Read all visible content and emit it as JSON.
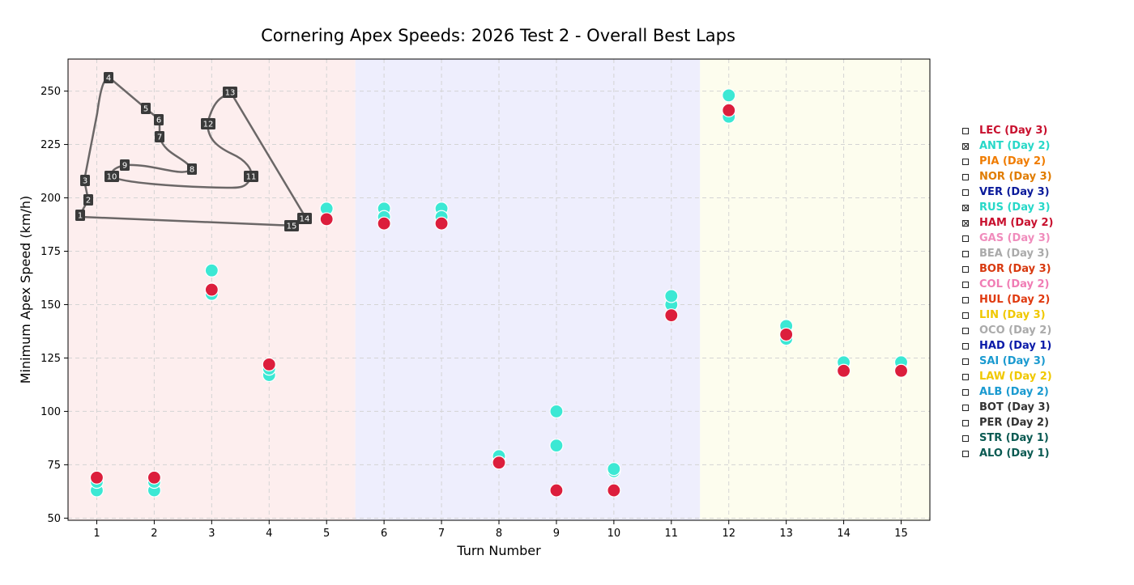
{
  "chart_data": {
    "type": "scatter",
    "title": "Cornering Apex Speeds: 2026 Test 2 - Overall Best Laps",
    "xlabel": "Turn Number",
    "ylabel": "Minimum Apex Speed (km/h)",
    "xlim": [
      0.5,
      15.5
    ],
    "ylim": [
      49,
      265
    ],
    "xticks": [
      1,
      2,
      3,
      4,
      5,
      6,
      7,
      8,
      9,
      10,
      11,
      12,
      13,
      14,
      15
    ],
    "yticks": [
      50,
      75,
      100,
      125,
      150,
      175,
      200,
      225,
      250
    ],
    "grid": true,
    "sectors": [
      {
        "from": 0.5,
        "to": 5.5,
        "color": "#fdeeee"
      },
      {
        "from": 5.5,
        "to": 11.5,
        "color": "#eeeefd"
      },
      {
        "from": 11.5,
        "to": 15.5,
        "color": "#fdfdee"
      }
    ],
    "series": [
      {
        "name": "ANT (Day 2)",
        "color": "#3ce8d4",
        "x": [
          1,
          2,
          3,
          4,
          5,
          6,
          7,
          8,
          9,
          10,
          11,
          12,
          13,
          14,
          15
        ],
        "values": [
          63,
          63,
          155,
          117,
          195,
          195,
          195,
          78,
          84,
          72,
          150,
          238,
          134,
          122,
          122
        ]
      },
      {
        "name": "RUS (Day 3)",
        "color": "#3ce8d4",
        "x": [
          1,
          2,
          3,
          4,
          5,
          6,
          7,
          8,
          9,
          10,
          11,
          12,
          13,
          14,
          15
        ],
        "values": [
          67,
          67,
          166,
          120,
          195,
          191,
          191,
          79,
          100,
          73,
          154,
          248,
          140,
          123,
          123
        ]
      },
      {
        "name": "HAM (Day 2)",
        "color": "#dc1e3c",
        "x": [
          1,
          2,
          3,
          4,
          5,
          6,
          7,
          8,
          9,
          10,
          11,
          12,
          13,
          14,
          15
        ],
        "values": [
          69,
          69,
          157,
          122,
          190,
          188,
          188,
          76,
          63,
          63,
          145,
          241,
          136,
          119,
          119
        ]
      }
    ],
    "track_map": {
      "corners": [
        "1",
        "2",
        "3",
        "4",
        "5",
        "6",
        "7",
        "8",
        "9",
        "10",
        "11",
        "12",
        "13",
        "14",
        "15"
      ]
    }
  },
  "legend": [
    {
      "label": "LEC (Day 3)",
      "color": "#c8102e",
      "checked": false
    },
    {
      "label": "ANT (Day 2)",
      "color": "#27d8c8",
      "checked": true
    },
    {
      "label": "PIA (Day 2)",
      "color": "#f07c00",
      "checked": false
    },
    {
      "label": "NOR (Day 3)",
      "color": "#e07c00",
      "checked": false
    },
    {
      "label": "VER (Day 3)",
      "color": "#0a1a9a",
      "checked": false
    },
    {
      "label": "RUS (Day 3)",
      "color": "#27d8c8",
      "checked": true
    },
    {
      "label": "HAM (Day 2)",
      "color": "#c8102e",
      "checked": true
    },
    {
      "label": "GAS (Day 3)",
      "color": "#f08cbc",
      "checked": false
    },
    {
      "label": "BEA (Day 3)",
      "color": "#aaaaaa",
      "checked": false
    },
    {
      "label": "BOR (Day 3)",
      "color": "#d83a10",
      "checked": false
    },
    {
      "label": "COL (Day 2)",
      "color": "#f07cb4",
      "checked": false
    },
    {
      "label": "HUL (Day 2)",
      "color": "#e03a10",
      "checked": false
    },
    {
      "label": "LIN (Day 3)",
      "color": "#f0c800",
      "checked": false
    },
    {
      "label": "OCO (Day 2)",
      "color": "#aaaaaa",
      "checked": false
    },
    {
      "label": "HAD (Day 1)",
      "color": "#0a1aa8",
      "checked": false
    },
    {
      "label": "SAI (Day 3)",
      "color": "#1a9ad0",
      "checked": false
    },
    {
      "label": "LAW (Day 2)",
      "color": "#f0c800",
      "checked": false
    },
    {
      "label": "ALB (Day 2)",
      "color": "#1a9ad0",
      "checked": false
    },
    {
      "label": "BOT (Day 3)",
      "color": "#333333",
      "checked": false
    },
    {
      "label": "PER (Day 2)",
      "color": "#333333",
      "checked": false
    },
    {
      "label": "STR (Day 1)",
      "color": "#0a5a52",
      "checked": false
    },
    {
      "label": "ALO (Day 1)",
      "color": "#0a5a52",
      "checked": false
    }
  ]
}
